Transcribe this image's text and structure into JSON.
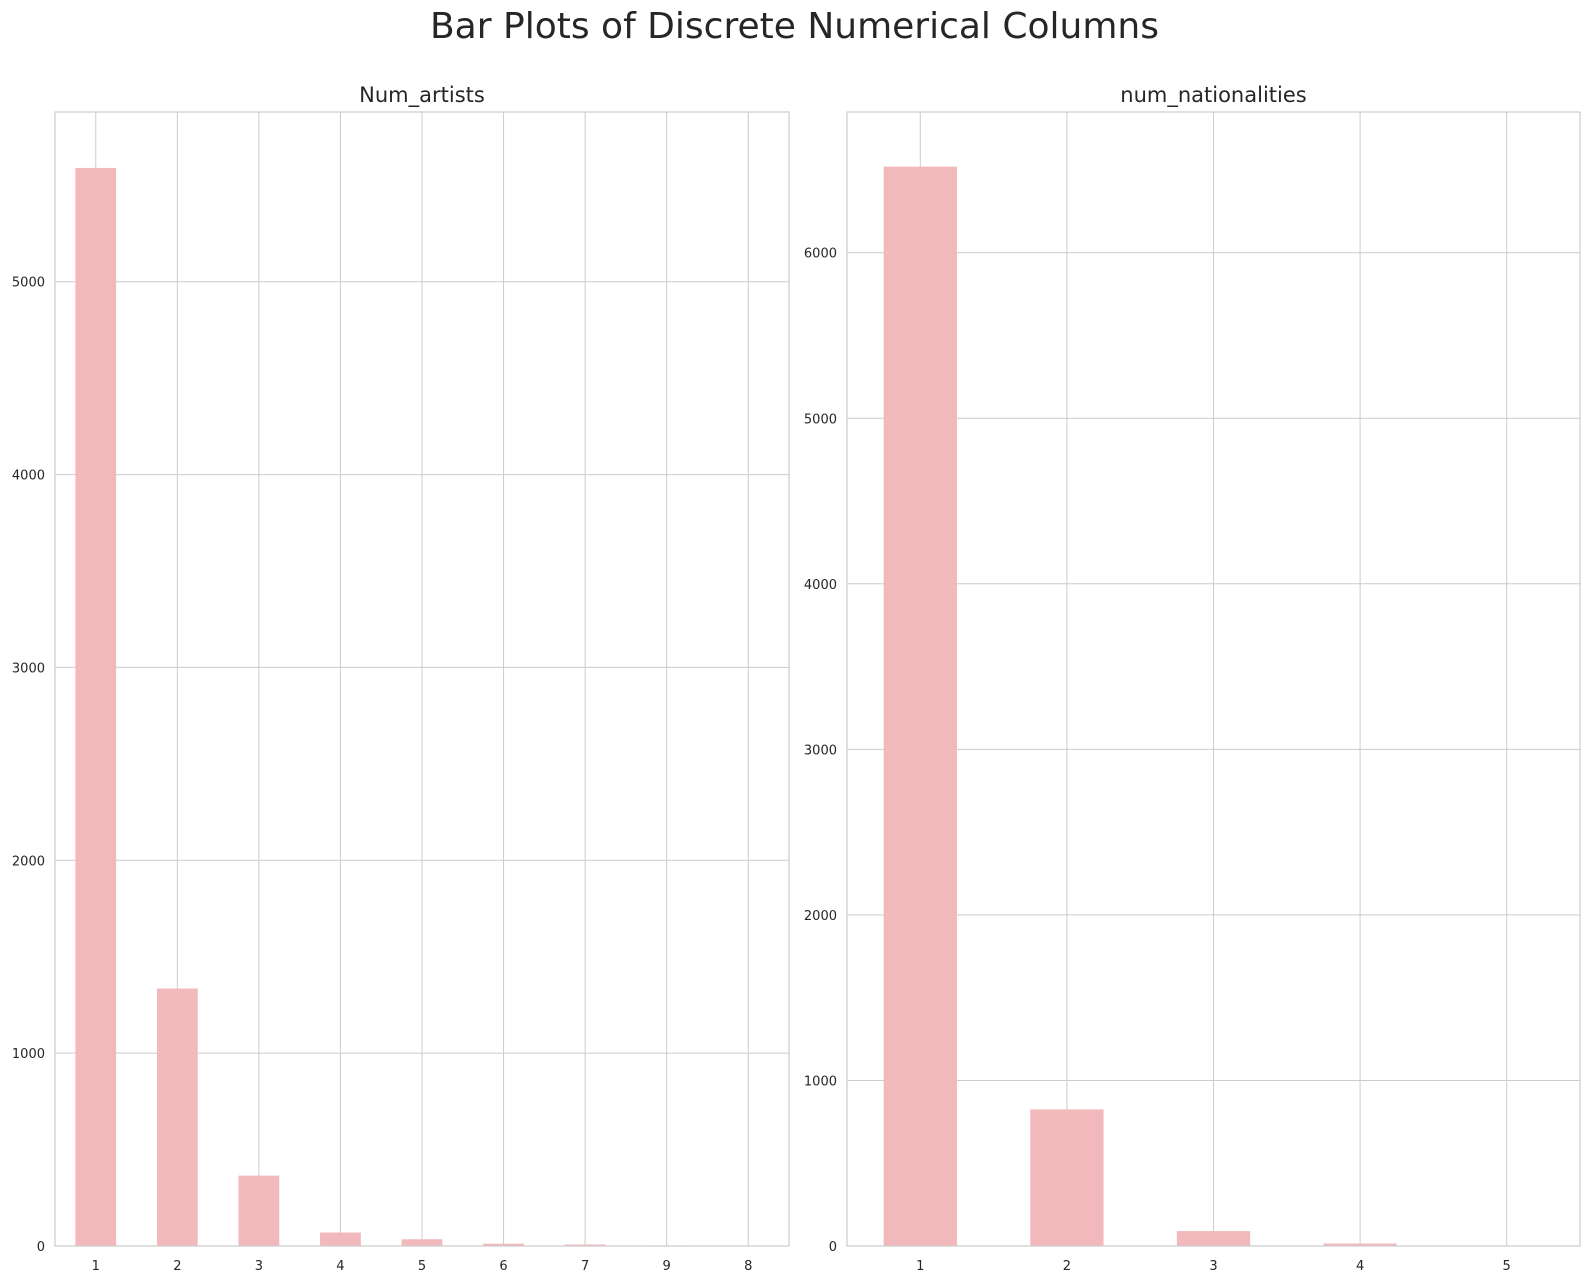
{
  "suptitle": "Bar Plots of Discrete Numerical Columns",
  "colors": {
    "bar": "#f2b9bc",
    "grid": "#cccccc",
    "spine": "#cccccc",
    "text": "#262626"
  },
  "chart_data": [
    {
      "type": "bar",
      "title": "Num_artists",
      "xlabel": "",
      "ylabel": "",
      "categories": [
        "1",
        "2",
        "3",
        "4",
        "5",
        "6",
        "7",
        "9",
        "8"
      ],
      "values": [
        5590,
        1335,
        365,
        70,
        35,
        12,
        8,
        3,
        2
      ],
      "ylim": [
        0,
        5880
      ],
      "yticks": [
        0,
        1000,
        2000,
        3000,
        4000,
        5000
      ],
      "grid": true,
      "legend": "none"
    },
    {
      "type": "bar",
      "title": "num_nationalities",
      "xlabel": "",
      "ylabel": "",
      "categories": [
        "1",
        "2",
        "3",
        "4",
        "5"
      ],
      "values": [
        6520,
        825,
        90,
        15,
        3
      ],
      "ylim": [
        0,
        6850
      ],
      "yticks": [
        0,
        1000,
        2000,
        3000,
        4000,
        5000,
        6000
      ],
      "grid": true,
      "legend": "none"
    }
  ]
}
